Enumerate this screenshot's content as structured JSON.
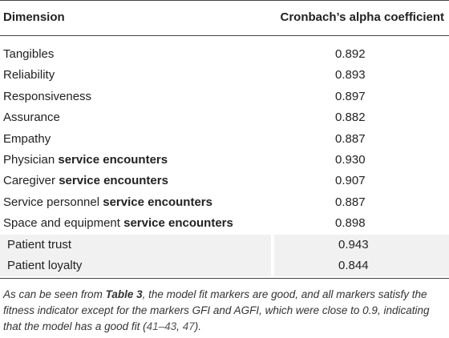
{
  "table": {
    "header": [
      "Dimension",
      "Cronbach’s alpha coefficient"
    ],
    "rows": [
      {
        "dimension": "Tangibles",
        "value": "0.892"
      },
      {
        "dimension": "Reliability",
        "value": "0.893"
      },
      {
        "dimension": "Responsiveness",
        "value": "0.897"
      },
      {
        "dimension": "Assurance",
        "value": "0.882"
      },
      {
        "dimension": "Empathy",
        "value": "0.887"
      },
      {
        "dimension": "Physician",
        "dimension_bold": "service encounters",
        "value": "0.930"
      },
      {
        "dimension": "Caregiver",
        "dimension_bold": "service encounters",
        "value": "0.907"
      },
      {
        "dimension": "Service personnel",
        "dimension_bold": "service encounters",
        "value": "0.887"
      },
      {
        "dimension": "Space and equipment",
        "dimension_bold": "service encounters",
        "value": "0.898"
      },
      {
        "dimension": "Patient trust",
        "value": "0.943",
        "shaded": true
      },
      {
        "dimension": "Patient loyalty",
        "value": "0.844",
        "shaded": true
      }
    ]
  },
  "note": [
    "As can be seen from ",
    "Table 3",
    ", the model fit markers are good, and all markers satisfy the fitness indicator except for the markers GFI and AGFI, which were close to 0.9, indicating that the model has a good fit (",
    "41–43",
    ", ",
    "47",
    ")."
  ]
}
